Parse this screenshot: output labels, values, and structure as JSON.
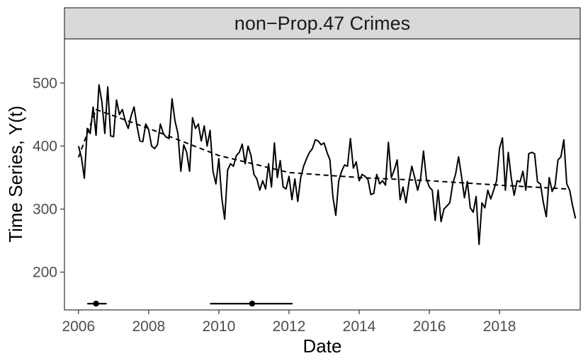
{
  "chart_data": {
    "type": "line",
    "facet_title": "non−Prop.47 Crimes",
    "xlabel": "Date",
    "ylabel": "Time Series,  Y(t)",
    "xlim": [
      2005.6,
      2020.3
    ],
    "ylim": [
      140,
      570
    ],
    "x_ticks": [
      2006,
      2008,
      2010,
      2012,
      2014,
      2016,
      2018
    ],
    "x_tick_labels": [
      "2006",
      "2008",
      "2010",
      "2012",
      "2014",
      "2016",
      "2018"
    ],
    "y_ticks": [
      200,
      300,
      400,
      500
    ],
    "y_tick_labels": [
      "200",
      "300",
      "400",
      "500"
    ],
    "grid": false,
    "facet_strip_color": "#d9d9d9",
    "line_color": "#000000",
    "series": [
      {
        "style": "solid",
        "x_start": 2006.0,
        "x_step_months": 1,
        "values": [
          400,
          382,
          349,
          428,
          420,
          462,
          417,
          497,
          470,
          420,
          494,
          416,
          415,
          473,
          450,
          458,
          440,
          428,
          448,
          462,
          432,
          408,
          407,
          435,
          426,
          400,
          396,
          402,
          435,
          420,
          414,
          412,
          475,
          440,
          420,
          360,
          402,
          390,
          360,
          445,
          428,
          435,
          408,
          432,
          400,
          425,
          360,
          340,
          380,
          318,
          284,
          362,
          372,
          368,
          385,
          390,
          403,
          372,
          400,
          385,
          355,
          348,
          330,
          345,
          332,
          372,
          335,
          405,
          350,
          377,
          335,
          332,
          352,
          315,
          348,
          312,
          350,
          368,
          380,
          390,
          396,
          410,
          408,
          402,
          405,
          390,
          378,
          320,
          290,
          345,
          360,
          370,
          368,
          412,
          365,
          375,
          345,
          355,
          352,
          347,
          323,
          325,
          355,
          340,
          345,
          338,
          406,
          350,
          362,
          378,
          315,
          335,
          310,
          342,
          368,
          350,
          330,
          348,
          392,
          348,
          335,
          330,
          282,
          330,
          280,
          300,
          305,
          310,
          340,
          356,
          383,
          352,
          318,
          344,
          302,
          295,
          320,
          244,
          310,
          302,
          330,
          316,
          330,
          345,
          396,
          413,
          330,
          390,
          350,
          322,
          345,
          343,
          360,
          330,
          388,
          390,
          388,
          343,
          340,
          310,
          288,
          350,
          328,
          337,
          378,
          383,
          410,
          340,
          330,
          305,
          285
        ]
      },
      {
        "style": "dashed",
        "x": [
          2006.0,
          2006.5,
          2008.0,
          2010.0,
          2012.0,
          2014.0,
          2016.0,
          2018.0,
          2019.9
        ],
        "values": [
          382,
          458,
          428,
          385,
          358,
          350,
          345,
          338,
          332
        ]
      }
    ],
    "intervals": [
      {
        "center": 2006.5,
        "low": 2006.25,
        "high": 2006.8,
        "y": 150
      },
      {
        "center": 2010.95,
        "low": 2009.75,
        "high": 2012.1,
        "y": 150
      }
    ]
  }
}
